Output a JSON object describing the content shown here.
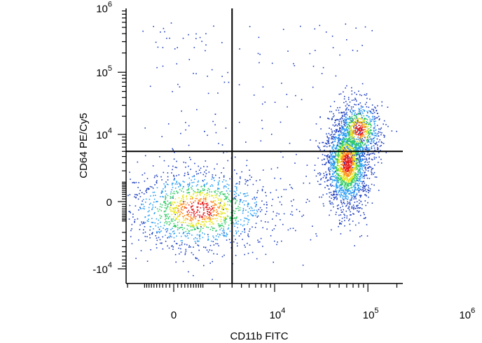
{
  "chart_data": {
    "type": "scatter",
    "title": "",
    "xlabel": "CD11b FITC",
    "ylabel": "CD64 PE/Cy5",
    "x_scale": "biexponential",
    "y_scale": "biexponential",
    "x_ticks": [
      {
        "value": 0,
        "base": "0",
        "exp": ""
      },
      {
        "value": 10000,
        "base": "10",
        "exp": "4"
      },
      {
        "value": 100000,
        "base": "10",
        "exp": "5"
      },
      {
        "value": 1000000,
        "base": "10",
        "exp": "6"
      }
    ],
    "y_ticks": [
      {
        "value": -10000,
        "base": "-10",
        "exp": "4"
      },
      {
        "value": 0,
        "base": "0",
        "exp": ""
      },
      {
        "value": 10000,
        "base": "10",
        "exp": "4"
      },
      {
        "value": 100000,
        "base": "10",
        "exp": "5"
      },
      {
        "value": 1000000,
        "base": "10",
        "exp": "6"
      }
    ],
    "quadrant_gate": {
      "x": 3000,
      "y": 5000
    },
    "density_colors": [
      "#1f3fbf",
      "#2a9df4",
      "#33cc66",
      "#e6e61a",
      "#ff8c1a",
      "#e61a1a"
    ],
    "populations": [
      {
        "center": [
          800,
          -300
        ],
        "spread": [
          2500,
          900
        ],
        "count": 1400
      },
      {
        "center": [
          60000,
          3000
        ],
        "spread": [
          18000,
          5000
        ],
        "count": 2000
      },
      {
        "center": [
          80000,
          12000
        ],
        "spread": [
          25000,
          9000
        ],
        "count": 700
      }
    ],
    "grid": false,
    "legend": "none"
  }
}
